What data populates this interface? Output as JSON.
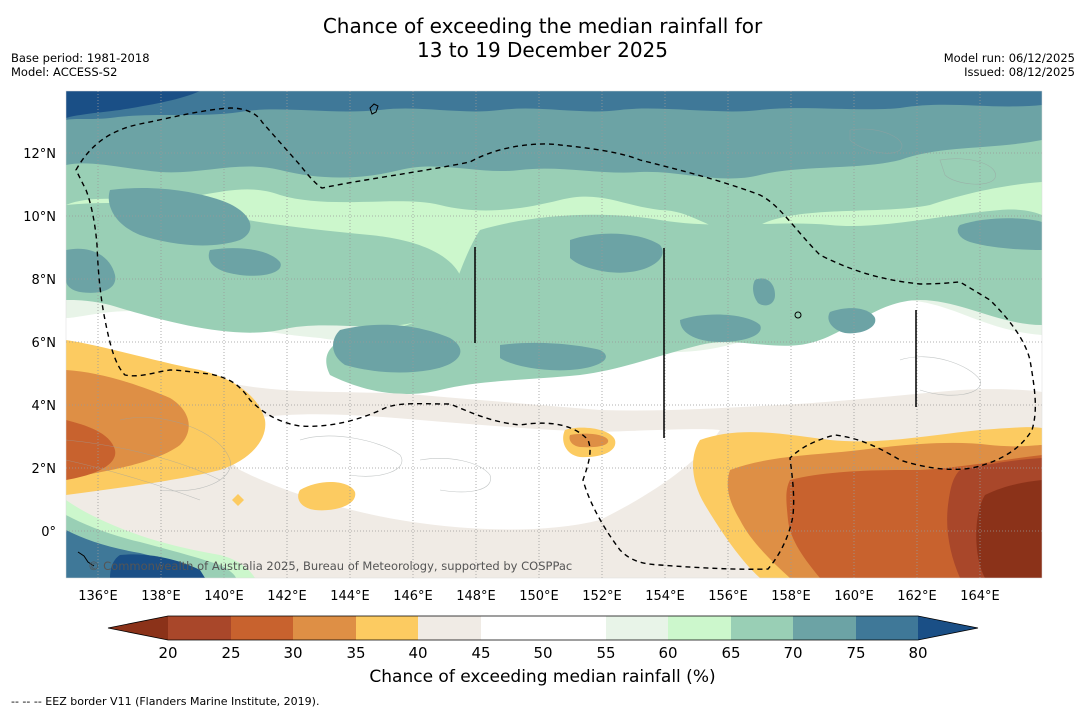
{
  "title": {
    "line1": "Chance of exceeding the median rainfall for",
    "line2": "13 to 19 December 2025"
  },
  "meta_left": {
    "base_period": "Base period: 1981-2018",
    "model": "Model: ACCESS-S2"
  },
  "meta_right": {
    "model_run": "Model run: 06/12/2025",
    "issued": "Issued: 08/12/2025"
  },
  "map": {
    "lon_labels": [
      "136°E",
      "138°E",
      "140°E",
      "142°E",
      "144°E",
      "146°E",
      "148°E",
      "150°E",
      "152°E",
      "154°E",
      "156°E",
      "158°E",
      "160°E",
      "162°E",
      "164°E"
    ],
    "lat_labels": [
      "12°N",
      "10°N",
      "8°N",
      "6°N",
      "4°N",
      "2°N",
      "0°"
    ],
    "copyright": "© Commonwealth of Australia 2025, Bureau of Meteorology, supported by COSPPac"
  },
  "colorbar": {
    "ticks": [
      "20",
      "25",
      "30",
      "35",
      "40",
      "45",
      "50",
      "55",
      "60",
      "65",
      "70",
      "75",
      "80"
    ],
    "colors": [
      "#8b3219",
      "#a9472a",
      "#c8622e",
      "#de8f45",
      "#fccb61",
      "#f0ebe5",
      "#ffffff",
      "#ffffff",
      "#e8f4e8",
      "#ccf7cc",
      "#99cfb5",
      "#6ca3a5",
      "#3f7898",
      "#1a4f86"
    ],
    "label": "Chance of exceeding median rainfall (%)"
  },
  "footnote": "-- -- -- EEZ border V11 (Flanders Marine Institute, 2019)."
}
